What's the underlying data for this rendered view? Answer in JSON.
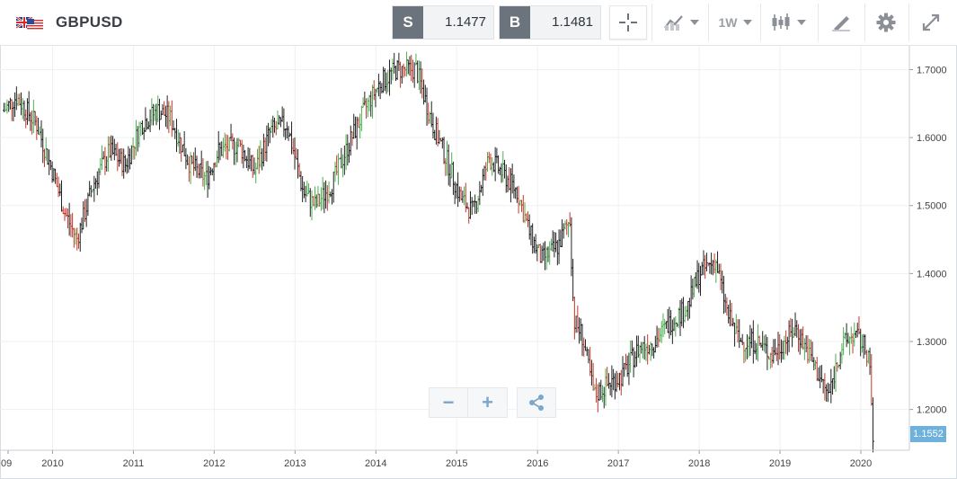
{
  "header": {
    "symbol": "GBPUSD",
    "sell_label": "S",
    "sell_price": "1.1477",
    "buy_label": "B",
    "buy_price": "1.1481",
    "timeframe": "1W",
    "icons": [
      "crosshair-icon",
      "chart-type-icon",
      "candlestick-icon",
      "drawing-tools-icon",
      "gear-icon",
      "expand-icon"
    ]
  },
  "zoom": {
    "minus": "−",
    "plus": "+"
  },
  "last_price_tag": "1.1552",
  "colors": {
    "up": "#4caf50",
    "down": "#c0392b",
    "neutral": "#222222",
    "accent": "#6fb1dd",
    "price_tag_bg": "#6b737c"
  },
  "chart_data": {
    "type": "line",
    "title": "",
    "xlabel": "",
    "ylabel": "",
    "style": "ohlc-bars",
    "x_ticks": [
      "09",
      "2010",
      "2011",
      "2012",
      "2013",
      "2014",
      "2015",
      "2016",
      "2017",
      "2018",
      "2019",
      "2020"
    ],
    "y_ticks": [
      "1.2000",
      "1.3000",
      "1.4000",
      "1.5000",
      "1.6000",
      "1.7000"
    ],
    "ylim": [
      1.14,
      1.735
    ],
    "xlim": [
      2009.4,
      2020.65
    ],
    "grid": true,
    "axis_position": "right",
    "series": [
      {
        "x": [
          2009.45,
          2009.6,
          2009.85,
          2010.05,
          2010.2,
          2010.35,
          2010.55,
          2010.75,
          2010.95,
          2011.15,
          2011.35,
          2011.5,
          2011.75,
          2011.95,
          2012.1,
          2012.35,
          2012.55,
          2012.75,
          2012.95,
          2013.15,
          2013.3,
          2013.5,
          2013.75,
          2013.95,
          2014.1,
          2014.3,
          2014.55,
          2014.75,
          2014.95,
          2015.1,
          2015.25,
          2015.45,
          2015.6,
          2015.8,
          2015.95,
          2016.1,
          2016.3,
          2016.45,
          2016.5,
          2016.6,
          2016.75,
          2016.95,
          2017.1,
          2017.3,
          2017.5,
          2017.7,
          2017.9,
          2018.05,
          2018.25,
          2018.4,
          2018.55,
          2018.75,
          2018.95,
          2019.1,
          2019.25,
          2019.45,
          2019.65,
          2019.8,
          2019.95,
          2020.05,
          2020.15,
          2020.2
        ],
        "values": [
          1.64,
          1.66,
          1.62,
          1.55,
          1.49,
          1.45,
          1.53,
          1.58,
          1.56,
          1.62,
          1.64,
          1.63,
          1.56,
          1.54,
          1.58,
          1.59,
          1.55,
          1.61,
          1.62,
          1.52,
          1.5,
          1.53,
          1.6,
          1.65,
          1.68,
          1.7,
          1.7,
          1.62,
          1.56,
          1.51,
          1.49,
          1.57,
          1.55,
          1.52,
          1.46,
          1.42,
          1.44,
          1.48,
          1.33,
          1.31,
          1.22,
          1.24,
          1.25,
          1.29,
          1.3,
          1.33,
          1.35,
          1.4,
          1.42,
          1.34,
          1.3,
          1.3,
          1.28,
          1.3,
          1.32,
          1.27,
          1.22,
          1.29,
          1.31,
          1.3,
          1.28,
          1.155
        ]
      }
    ]
  }
}
